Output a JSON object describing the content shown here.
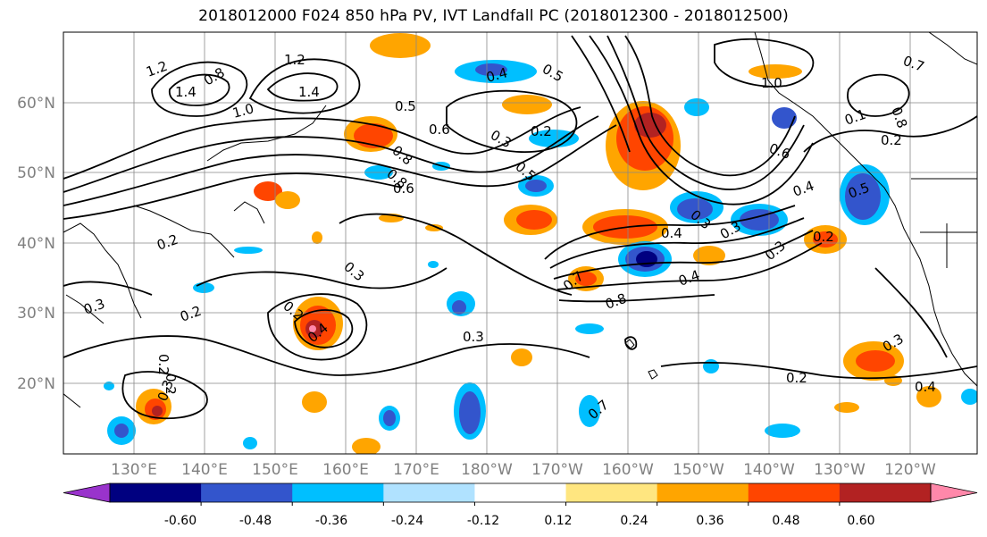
{
  "title": "2018012000 F024 850 hPa PV, IVT Landfall PC (2018012300 - 2018012500)",
  "lat_labels": [
    "60°N",
    "50°N",
    "40°N",
    "30°N",
    "20°N"
  ],
  "lon_labels": [
    "130°E",
    "140°E",
    "150°E",
    "160°E",
    "170°E",
    "180°W",
    "170°W",
    "160°W",
    "150°W",
    "140°W",
    "130°W",
    "120°W"
  ],
  "colorbar": {
    "colors": [
      "#9933cc",
      "#000080",
      "#3355cc",
      "#00bfff",
      "#b0e2ff",
      "#ffffff",
      "#ffe680",
      "#ffa500",
      "#ff4500",
      "#b22222",
      "#ff88aa"
    ],
    "tick_labels": [
      "-0.60",
      "-0.48",
      "-0.36",
      "-0.24",
      "-0.12",
      "0.12",
      "0.24",
      "0.36",
      "0.48",
      "0.60"
    ]
  },
  "contour_labels": [
    "1.2",
    "1.4",
    "0.8",
    "1.0",
    "1.2",
    "1.4",
    "0.5",
    "0.8",
    "0.6",
    "0.8",
    "0.3",
    "0.2",
    "0.5",
    "0.4",
    "0.6",
    "0.6",
    "0.4",
    "0.5",
    "0.3",
    "0.2",
    "0.4",
    "0.3",
    "0.3",
    "0.8",
    "0.7",
    "0.4",
    "0.2",
    "0.2",
    "0.3",
    "0.4",
    "0.2",
    "0.3",
    "0.2",
    "0.2",
    "0.3",
    "0.3",
    "0.2",
    "0.4",
    "1.0",
    "0.8",
    "0.1",
    "0.7",
    "0.2",
    "0.7",
    "0.5",
    "0.3"
  ]
}
